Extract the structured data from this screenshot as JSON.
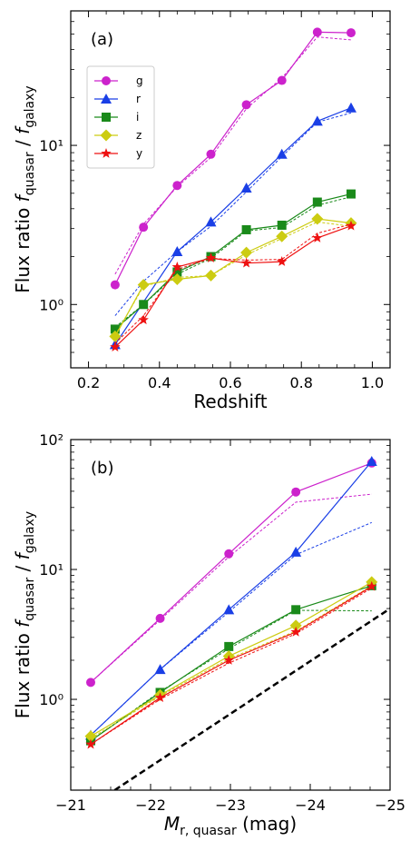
{
  "colors": {
    "g": "#cc22cc",
    "r": "#1a3fe6",
    "i": "#1a8a1a",
    "z": "#cccc11",
    "y": "#ee1111",
    "reference": "#000000"
  },
  "chart_data": [
    {
      "type": "line",
      "panel_label": "(a)",
      "xlabel": "Redshift",
      "ylabel_prefix": "Flux ratio",
      "ylabel_num": "f",
      "ylabel_num_sub": "quasar",
      "ylabel_den": "f",
      "ylabel_den_sub": "galaxy",
      "xlim": [
        0.15,
        1.05
      ],
      "ylim": [
        0.4,
        70
      ],
      "yscale": "log",
      "xticks": [
        0.2,
        0.4,
        0.6,
        0.8,
        1.0
      ],
      "xtick_labels": [
        "0.2",
        "0.4",
        "0.6",
        "0.8",
        "1.0"
      ],
      "yticks": [
        1,
        10
      ],
      "ytick_labels": [
        "10⁰",
        "10¹"
      ],
      "legend_position": "upper-left",
      "x": [
        0.275,
        0.355,
        0.45,
        0.545,
        0.645,
        0.745,
        0.845,
        0.94
      ],
      "series": [
        {
          "name": "g",
          "marker": "circle",
          "values": [
            1.33,
            3.06,
            5.6,
            8.8,
            18.0,
            25.6,
            51.5,
            51.0
          ],
          "fit": [
            1.55,
            3.2,
            5.5,
            8.4,
            17.0,
            26.5,
            48.0,
            46.0
          ]
        },
        {
          "name": "r",
          "marker": "triangle",
          "values": [
            0.56,
            null,
            2.15,
            3.3,
            5.4,
            8.8,
            14.2,
            17.2
          ],
          "fit": [
            0.85,
            1.4,
            2.15,
            3.1,
            5.1,
            8.5,
            14.0,
            16.0
          ]
        },
        {
          "name": "i",
          "marker": "square",
          "values": [
            0.7,
            1.0,
            1.6,
            2.0,
            2.95,
            3.15,
            4.4,
            4.95
          ],
          "fit": [
            0.72,
            1.0,
            1.55,
            1.95,
            2.9,
            3.05,
            4.2,
            4.75
          ]
        },
        {
          "name": "z",
          "marker": "diamond",
          "values": [
            0.63,
            1.33,
            1.44,
            1.52,
            2.12,
            2.68,
            3.45,
            3.25
          ],
          "fit": [
            0.64,
            1.3,
            1.48,
            1.52,
            2.05,
            2.6,
            3.3,
            3.1
          ]
        },
        {
          "name": "y",
          "marker": "star",
          "values": [
            0.54,
            0.8,
            1.72,
            1.96,
            1.82,
            1.86,
            2.62,
            3.12
          ],
          "fit": [
            0.57,
            0.85,
            1.66,
            1.95,
            1.9,
            1.92,
            2.8,
            3.2
          ]
        }
      ]
    },
    {
      "type": "line",
      "panel_label": "(b)",
      "xlabel": "",
      "xlabel_main": "M",
      "xlabel_sub": "r, quasar",
      "xlabel_unit": " (mag)",
      "ylabel_prefix": "Flux ratio",
      "ylabel_num": "f",
      "ylabel_num_sub": "quasar",
      "ylabel_den": "f",
      "ylabel_den_sub": "galaxy",
      "xlim": [
        -21,
        -25
      ],
      "ylim": [
        0.2,
        100
      ],
      "yscale": "log",
      "xticks": [
        -21,
        -22,
        -23,
        -24,
        -25
      ],
      "xtick_labels": [
        "−21",
        "−22",
        "−23",
        "−24",
        "−25"
      ],
      "yticks": [
        1,
        10,
        100
      ],
      "ytick_labels": [
        "10⁰",
        "10¹",
        "10²"
      ],
      "x": [
        -21.25,
        -22.12,
        -22.98,
        -23.82,
        -24.77
      ],
      "series": [
        {
          "name": "g",
          "marker": "circle",
          "values": [
            1.35,
            4.2,
            13.2,
            39.5,
            66.0
          ],
          "fit": [
            1.35,
            4.1,
            12.5,
            33.0,
            38.0
          ]
        },
        {
          "name": "r",
          "marker": "triangle",
          "values": [
            0.53,
            1.7,
            4.9,
            13.6,
            68.0
          ],
          "fit": [
            0.53,
            1.7,
            4.7,
            13.0,
            23.0
          ]
        },
        {
          "name": "i",
          "marker": "square",
          "values": [
            0.48,
            1.13,
            2.55,
            4.9,
            7.5
          ],
          "fit": [
            0.48,
            1.15,
            2.45,
            4.85,
            4.8
          ]
        },
        {
          "name": "z",
          "marker": "diamond",
          "values": [
            0.52,
            1.08,
            2.15,
            3.7,
            8.0
          ],
          "fit": [
            0.5,
            1.06,
            2.05,
            3.35,
            7.5
          ]
        },
        {
          "name": "y",
          "marker": "star",
          "values": [
            0.45,
            1.03,
            2.0,
            3.3,
            7.4
          ],
          "fit": [
            0.45,
            1.0,
            1.9,
            3.2,
            7.2
          ]
        }
      ],
      "reference_line": {
        "x": [
          -21.55,
          -25.0
        ],
        "values": [
          0.2,
          5.0
        ]
      }
    }
  ]
}
